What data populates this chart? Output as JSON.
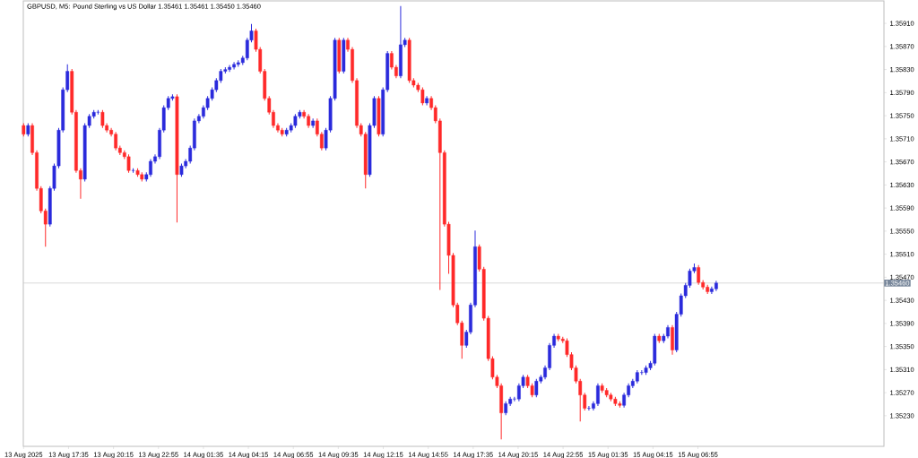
{
  "chart_data": {
    "type": "candlestick",
    "title": "GBPUSD, M5:  Pound Sterling vs US Dollar  1.35461 1.35461 1.35450 1.35460",
    "colors": [
      "#ff2a2a",
      "#2b2bdc",
      "#ff2a2a",
      "#ff2a2a",
      "#ff2a2a",
      "#ff2a2a",
      "#2b2bdc",
      "#2b2bdc",
      "#2b2bdc",
      "#2b2bdc",
      "#2b2bdc",
      "#ff2a2a",
      "#ff2a2a",
      "#ff2a2a",
      "#2b2bdc",
      "#2b2bdc",
      "#2b2bdc",
      "#2b2bdc",
      "#ff2a2a",
      "#ff2a2a",
      "#ff2a2a",
      "#ff2a2a",
      "#ff2a2a",
      "#ff2a2a",
      "#ff2a2a",
      "#2b2bdc",
      "#ff2a2a",
      "#ff2a2a",
      "#2b2bdc",
      "#2b2bdc",
      "#2b2bdc",
      "#2b2bdc",
      "#2b2bdc",
      "#2b2bdc",
      "#2b2bdc",
      "#ff2a2a",
      "#2b2bdc",
      "#2b2bdc",
      "#2b2bdc",
      "#2b2bdc",
      "#2b2bdc",
      "#2b2bdc",
      "#2b2bdc",
      "#2b2bdc",
      "#2b2bdc",
      "#2b2bdc",
      "#2b2bdc",
      "#2b2bdc",
      "#2b2bdc",
      "#2b2bdc",
      "#2b2bdc",
      "#2b2bdc",
      "#2b2bdc",
      "#ff2a2a",
      "#ff2a2a",
      "#ff2a2a",
      "#ff2a2a",
      "#ff2a2a",
      "#ff2a2a",
      "#ff2a2a",
      "#2b2bdc",
      "#2b2bdc",
      "#2b2bdc",
      "#2b2bdc",
      "#ff2a2a",
      "#ff2a2a",
      "#2b2bdc",
      "#ff2a2a",
      "#ff2a2a",
      "#2b2bdc",
      "#2b2bdc",
      "#2b2bdc",
      "#ff2a2a",
      "#2b2bdc",
      "#ff2a2a",
      "#ff2a2a",
      "#ff2a2a",
      "#ff2a2a",
      "#ff2a2a",
      "#2b2bdc",
      "#2b2bdc",
      "#ff2a2a",
      "#2b2bdc",
      "#2b2bdc",
      "#ff2a2a",
      "#ff2a2a",
      "#2b2bdc",
      "#2b2bdc",
      "#ff2a2a",
      "#ff2a2a",
      "#ff2a2a",
      "#ff2a2a",
      "#2b2bdc",
      "#ff2a2a",
      "#ff2a2a",
      "#ff2a2a",
      "#ff2a2a",
      "#ff2a2a",
      "#ff2a2a",
      "#ff2a2a",
      "#ff2a2a",
      "#2b2bdc",
      "#2b2bdc",
      "#2b2bdc",
      "#ff2a2a",
      "#ff2a2a",
      "#ff2a2a",
      "#ff2a2a",
      "#ff2a2a",
      "#ff2a2a",
      "#2b2bdc",
      "#2b2bdc",
      "#2b2bdc",
      "#2b2bdc",
      "#2b2bdc",
      "#ff2a2a",
      "#ff2a2a",
      "#2b2bdc",
      "#2b2bdc",
      "#2b2bdc",
      "#2b2bdc",
      "#2b2bdc",
      "#ff2a2a",
      "#ff2a2a",
      "#ff2a2a",
      "#ff2a2a",
      "#ff2a2a",
      "#ff2a2a",
      "#ff2a2a",
      "#2b2bdc",
      "#2b2bdc",
      "#2b2bdc",
      "#ff2a2a",
      "#ff2a2a",
      "#ff2a2a",
      "#ff2a2a",
      "#ff2a2a",
      "#2b2bdc",
      "#2b2bdc",
      "#2b2bdc",
      "#2b2bdc",
      "#2b2bdc",
      "#2b2bdc",
      "#2b2bdc",
      "#2b2bdc",
      "#ff2a2a",
      "#2b2bdc",
      "#2b2bdc",
      "#ff2a2a",
      "#2b2bdc",
      "#2b2bdc",
      "#2b2bdc",
      "#2b2bdc",
      "#2b2bdc",
      "#ff2a2a",
      "#ff2a2a",
      "#ff2a2a",
      "#2b2bdc",
      "#2b2bdc"
    ],
    "xlim": [
      "2025-08-13T14:54",
      "2025-08-15T17:57"
    ],
    "ylim": [
      1.35177,
      1.35949
    ],
    "xticks": [
      {
        "value": "2025-08-13T14:55",
        "label": "13 Aug 2025"
      },
      {
        "value": "2025-08-13T17:35",
        "label": "13 Aug 17:35"
      },
      {
        "value": "2025-08-13T20:15",
        "label": "13 Aug 20:15"
      },
      {
        "value": "2025-08-13T22:55",
        "label": "13 Aug 22:55"
      },
      {
        "value": "2025-08-14T01:35",
        "label": "14 Aug 01:35"
      },
      {
        "value": "2025-08-14T04:15",
        "label": "14 Aug 04:15"
      },
      {
        "value": "2025-08-14T06:55",
        "label": "14 Aug 06:55"
      },
      {
        "value": "2025-08-14T09:35",
        "label": "14 Aug 09:35"
      },
      {
        "value": "2025-08-14T12:15",
        "label": "14 Aug 12:15"
      },
      {
        "value": "2025-08-14T14:55",
        "label": "14 Aug 14:55"
      },
      {
        "value": "2025-08-14T17:35",
        "label": "14 Aug 17:35"
      },
      {
        "value": "2025-08-14T20:15",
        "label": "14 Aug 20:15"
      },
      {
        "value": "2025-08-14T22:55",
        "label": "14 Aug 22:55"
      },
      {
        "value": "2025-08-15T01:35",
        "label": "15 Aug 01:35"
      },
      {
        "value": "2025-08-15T04:15",
        "label": "15 Aug 04:15"
      },
      {
        "value": "2025-08-15T06:55",
        "label": "15 Aug 06:55"
      }
    ],
    "yticks": [
      {
        "value": 1.3523,
        "label": "1.35230"
      },
      {
        "value": 1.3527,
        "label": "1.35270"
      },
      {
        "value": 1.3531,
        "label": "1.35310"
      },
      {
        "value": 1.3535,
        "label": "1.35350"
      },
      {
        "value": 1.3539,
        "label": "1.35390"
      },
      {
        "value": 1.3543,
        "label": "1.35430"
      },
      {
        "value": 1.3547,
        "label": "1.35470"
      },
      {
        "value": 1.3551,
        "label": "1.35510"
      },
      {
        "value": 1.3555,
        "label": "1.35550"
      },
      {
        "value": 1.3559,
        "label": "1.35590"
      },
      {
        "value": 1.3563,
        "label": "1.35630"
      },
      {
        "value": 1.3567,
        "label": "1.35670"
      },
      {
        "value": 1.3571,
        "label": "1.35710"
      },
      {
        "value": 1.3575,
        "label": "1.35750"
      },
      {
        "value": 1.3579,
        "label": "1.35790"
      },
      {
        "value": 1.3583,
        "label": "1.35830"
      },
      {
        "value": 1.3587,
        "label": "1.35870"
      },
      {
        "value": 1.3591,
        "label": "1.35910"
      }
    ],
    "ref_lines": [
      {
        "axis": "y",
        "value": 1.3546,
        "label": "1.35460",
        "color": "#c8c8c8"
      }
    ],
    "x": [
      "2025-08-13T14:55",
      "2025-08-13T15:11",
      "2025-08-13T15:26",
      "2025-08-13T15:42",
      "2025-08-13T15:57",
      "2025-08-13T16:13",
      "2025-08-13T16:29",
      "2025-08-13T16:44",
      "2025-08-13T17:00",
      "2025-08-13T17:15",
      "2025-08-13T17:31",
      "2025-08-13T17:47",
      "2025-08-13T18:02",
      "2025-08-13T18:18",
      "2025-08-13T18:33",
      "2025-08-13T18:49",
      "2025-08-13T19:05",
      "2025-08-13T19:20",
      "2025-08-13T19:36",
      "2025-08-13T19:51",
      "2025-08-13T20:07",
      "2025-08-13T20:23",
      "2025-08-13T20:38",
      "2025-08-13T20:54",
      "2025-08-13T21:09",
      "2025-08-13T21:25",
      "2025-08-13T21:41",
      "2025-08-13T21:56",
      "2025-08-13T22:12",
      "2025-08-13T22:27",
      "2025-08-13T22:43",
      "2025-08-13T22:59",
      "2025-08-13T23:14",
      "2025-08-13T23:30",
      "2025-08-13T23:45",
      "2025-08-14T00:01",
      "2025-08-14T00:17",
      "2025-08-14T00:32",
      "2025-08-14T00:48",
      "2025-08-14T01:03",
      "2025-08-14T01:19",
      "2025-08-14T01:35",
      "2025-08-14T01:50",
      "2025-08-14T02:06",
      "2025-08-14T02:21",
      "2025-08-14T02:37",
      "2025-08-14T02:53",
      "2025-08-14T03:08",
      "2025-08-14T03:24",
      "2025-08-14T03:39",
      "2025-08-14T03:55",
      "2025-08-14T04:11",
      "2025-08-14T04:26",
      "2025-08-14T04:42",
      "2025-08-14T04:57",
      "2025-08-14T05:13",
      "2025-08-14T05:29",
      "2025-08-14T05:44",
      "2025-08-14T06:00",
      "2025-08-14T06:15",
      "2025-08-14T06:31",
      "2025-08-14T06:47",
      "2025-08-14T07:02",
      "2025-08-14T07:18",
      "2025-08-14T07:33",
      "2025-08-14T07:49",
      "2025-08-14T08:05",
      "2025-08-14T08:20",
      "2025-08-14T08:36",
      "2025-08-14T08:51",
      "2025-08-14T09:07",
      "2025-08-14T09:23",
      "2025-08-14T09:38",
      "2025-08-14T09:54",
      "2025-08-14T10:09",
      "2025-08-14T10:25",
      "2025-08-14T10:41",
      "2025-08-14T10:56",
      "2025-08-14T11:12",
      "2025-08-14T11:27",
      "2025-08-14T11:43",
      "2025-08-14T11:59",
      "2025-08-14T12:14",
      "2025-08-14T12:30",
      "2025-08-14T12:45",
      "2025-08-14T13:01",
      "2025-08-14T13:17",
      "2025-08-14T13:32",
      "2025-08-14T13:48",
      "2025-08-14T14:03",
      "2025-08-14T14:19",
      "2025-08-14T14:35",
      "2025-08-14T14:50",
      "2025-08-14T15:06",
      "2025-08-14T15:21",
      "2025-08-14T15:37",
      "2025-08-14T15:53",
      "2025-08-14T16:08",
      "2025-08-14T16:24",
      "2025-08-14T16:39",
      "2025-08-14T16:55",
      "2025-08-14T17:11",
      "2025-08-14T17:26",
      "2025-08-14T17:42",
      "2025-08-14T17:57",
      "2025-08-14T18:13",
      "2025-08-14T18:29",
      "2025-08-14T18:44",
      "2025-08-14T19:00",
      "2025-08-14T19:15",
      "2025-08-14T19:31",
      "2025-08-14T19:47",
      "2025-08-14T20:02",
      "2025-08-14T20:18",
      "2025-08-14T20:33",
      "2025-08-14T20:49",
      "2025-08-14T21:05",
      "2025-08-14T21:20",
      "2025-08-14T21:36",
      "2025-08-14T21:51",
      "2025-08-14T22:07",
      "2025-08-14T22:23",
      "2025-08-14T22:38",
      "2025-08-14T22:54",
      "2025-08-14T23:09",
      "2025-08-14T23:25",
      "2025-08-14T23:41",
      "2025-08-14T23:56",
      "2025-08-15T00:12",
      "2025-08-15T00:27",
      "2025-08-15T00:43",
      "2025-08-15T00:59",
      "2025-08-15T01:14",
      "2025-08-15T01:30",
      "2025-08-15T01:45",
      "2025-08-15T02:01",
      "2025-08-15T02:17",
      "2025-08-15T02:32",
      "2025-08-15T02:48",
      "2025-08-15T03:03",
      "2025-08-15T03:19",
      "2025-08-15T03:35",
      "2025-08-15T03:50",
      "2025-08-15T04:06",
      "2025-08-15T04:21",
      "2025-08-15T04:37",
      "2025-08-15T04:53",
      "2025-08-15T05:08",
      "2025-08-15T05:24",
      "2025-08-15T05:39",
      "2025-08-15T05:55",
      "2025-08-15T06:11",
      "2025-08-15T06:26",
      "2025-08-15T06:42",
      "2025-08-15T06:57",
      "2025-08-15T07:13",
      "2025-08-15T07:29",
      "2025-08-15T07:44",
      "2025-08-15T08:00"
    ],
    "ohlc": [
      [
        1.35733,
        1.35737,
        1.35714,
        1.35718
      ],
      [
        1.35718,
        1.35737,
        1.35714,
        1.35733
      ],
      [
        1.35733,
        1.35737,
        1.35682,
        1.35686
      ],
      [
        1.35686,
        1.3569,
        1.3562,
        1.35624
      ],
      [
        1.35624,
        1.35628,
        1.35581,
        1.35585
      ],
      [
        1.35585,
        1.35589,
        1.35523,
        1.35562
      ],
      [
        1.35562,
        1.35628,
        1.35558,
        1.35624
      ],
      [
        1.35624,
        1.35667,
        1.3562,
        1.35663
      ],
      [
        1.35663,
        1.35729,
        1.35659,
        1.35725
      ],
      [
        1.35725,
        1.35799,
        1.35721,
        1.35795
      ],
      [
        1.35795,
        1.35839,
        1.35791,
        1.35827
      ],
      [
        1.35827,
        1.35831,
        1.35752,
        1.35756
      ],
      [
        1.35756,
        1.3576,
        1.35651,
        1.35655
      ],
      [
        1.35655,
        1.35659,
        1.35606,
        1.3564
      ],
      [
        1.3564,
        1.35737,
        1.35636,
        1.35733
      ],
      [
        1.35733,
        1.35753,
        1.35729,
        1.35749
      ],
      [
        1.35749,
        1.3576,
        1.35745,
        1.35756
      ],
      [
        1.35756,
        1.3576,
        1.35752,
        1.35756
      ],
      [
        1.35756,
        1.3576,
        1.35729,
        1.35733
      ],
      [
        1.35733,
        1.35737,
        1.35721,
        1.35725
      ],
      [
        1.35725,
        1.35729,
        1.35714,
        1.35718
      ],
      [
        1.35718,
        1.35722,
        1.3569,
        1.35694
      ],
      [
        1.35694,
        1.35698,
        1.35682,
        1.35686
      ],
      [
        1.35686,
        1.3569,
        1.35675,
        1.35679
      ],
      [
        1.35679,
        1.35683,
        1.35651,
        1.35655
      ],
      [
        1.35655,
        1.35659,
        1.35651,
        1.35655
      ],
      [
        1.35655,
        1.35659,
        1.35644,
        1.35648
      ],
      [
        1.35648,
        1.35652,
        1.35636,
        1.3564
      ],
      [
        1.3564,
        1.35652,
        1.35636,
        1.35648
      ],
      [
        1.35648,
        1.35675,
        1.35644,
        1.35671
      ],
      [
        1.35671,
        1.35683,
        1.35667,
        1.35679
      ],
      [
        1.35679,
        1.35729,
        1.35675,
        1.35725
      ],
      [
        1.35725,
        1.35768,
        1.35721,
        1.35764
      ],
      [
        1.35764,
        1.35784,
        1.3576,
        1.3578
      ],
      [
        1.3578,
        1.35787,
        1.35776,
        1.35783
      ],
      [
        1.35783,
        1.35787,
        1.35565,
        1.35648
      ],
      [
        1.35648,
        1.35667,
        1.35644,
        1.35663
      ],
      [
        1.35663,
        1.35675,
        1.35659,
        1.35671
      ],
      [
        1.35671,
        1.35698,
        1.35667,
        1.35694
      ],
      [
        1.35694,
        1.35745,
        1.3569,
        1.35741
      ],
      [
        1.35741,
        1.35753,
        1.35737,
        1.35749
      ],
      [
        1.35749,
        1.35768,
        1.35745,
        1.35764
      ],
      [
        1.35764,
        1.35784,
        1.3576,
        1.3578
      ],
      [
        1.3578,
        1.35799,
        1.35776,
        1.35795
      ],
      [
        1.35795,
        1.35815,
        1.35791,
        1.35811
      ],
      [
        1.35811,
        1.35831,
        1.35807,
        1.35827
      ],
      [
        1.35827,
        1.35834,
        1.35823,
        1.3583
      ],
      [
        1.3583,
        1.35838,
        1.35826,
        1.35834
      ],
      [
        1.35834,
        1.35843,
        1.3583,
        1.35839
      ],
      [
        1.35839,
        1.35846,
        1.35835,
        1.35842
      ],
      [
        1.35842,
        1.35854,
        1.35838,
        1.3585
      ],
      [
        1.3585,
        1.35885,
        1.35846,
        1.35881
      ],
      [
        1.35881,
        1.35909,
        1.35877,
        1.35897
      ],
      [
        1.35897,
        1.35901,
        1.35861,
        1.35865
      ],
      [
        1.35865,
        1.35869,
        1.35823,
        1.35827
      ],
      [
        1.35827,
        1.35831,
        1.35776,
        1.3578
      ],
      [
        1.3578,
        1.35784,
        1.35752,
        1.35756
      ],
      [
        1.35756,
        1.3576,
        1.35729,
        1.35733
      ],
      [
        1.35733,
        1.35737,
        1.35721,
        1.35725
      ],
      [
        1.35725,
        1.35729,
        1.35714,
        1.35718
      ],
      [
        1.35718,
        1.35729,
        1.35714,
        1.35725
      ],
      [
        1.35725,
        1.35737,
        1.35721,
        1.35733
      ],
      [
        1.35733,
        1.35753,
        1.35729,
        1.35749
      ],
      [
        1.35749,
        1.3576,
        1.35745,
        1.35756
      ],
      [
        1.35756,
        1.3576,
        1.35745,
        1.35749
      ],
      [
        1.35749,
        1.35753,
        1.35729,
        1.35733
      ],
      [
        1.35733,
        1.35745,
        1.35729,
        1.35741
      ],
      [
        1.35741,
        1.35745,
        1.35714,
        1.35718
      ],
      [
        1.35718,
        1.35722,
        1.3569,
        1.35694
      ],
      [
        1.35694,
        1.35729,
        1.3569,
        1.35725
      ],
      [
        1.35725,
        1.35784,
        1.35721,
        1.3578
      ],
      [
        1.3578,
        1.35885,
        1.35776,
        1.35881
      ],
      [
        1.35881,
        1.35885,
        1.35823,
        1.35827
      ],
      [
        1.35827,
        1.35885,
        1.35823,
        1.35881
      ],
      [
        1.35881,
        1.35885,
        1.35861,
        1.35865
      ],
      [
        1.35865,
        1.35869,
        1.35807,
        1.35811
      ],
      [
        1.35811,
        1.35815,
        1.35729,
        1.35733
      ],
      [
        1.35733,
        1.35737,
        1.35714,
        1.35718
      ],
      [
        1.35718,
        1.35722,
        1.35624,
        1.35648
      ],
      [
        1.35648,
        1.35737,
        1.35644,
        1.35733
      ],
      [
        1.35733,
        1.35784,
        1.35729,
        1.3578
      ],
      [
        1.3578,
        1.35784,
        1.35714,
        1.35718
      ],
      [
        1.35718,
        1.35799,
        1.35714,
        1.35795
      ],
      [
        1.35795,
        1.35862,
        1.35791,
        1.35858
      ],
      [
        1.35858,
        1.35862,
        1.3583,
        1.35834
      ],
      [
        1.35834,
        1.35838,
        1.35815,
        1.35819
      ],
      [
        1.35819,
        1.3594,
        1.35815,
        1.35873
      ],
      [
        1.35873,
        1.35885,
        1.35869,
        1.35881
      ],
      [
        1.35881,
        1.35885,
        1.35807,
        1.35811
      ],
      [
        1.35811,
        1.35815,
        1.35799,
        1.35803
      ],
      [
        1.35803,
        1.35807,
        1.35791,
        1.35795
      ],
      [
        1.35795,
        1.35799,
        1.35768,
        1.35772
      ],
      [
        1.35772,
        1.35784,
        1.35768,
        1.3578
      ],
      [
        1.3578,
        1.35784,
        1.3576,
        1.35764
      ],
      [
        1.35764,
        1.35768,
        1.35737,
        1.35741
      ],
      [
        1.35741,
        1.35745,
        1.35448,
        1.35686
      ],
      [
        1.35686,
        1.3569,
        1.35558,
        1.35562
      ],
      [
        1.35562,
        1.35566,
        1.35476,
        1.35508
      ],
      [
        1.35508,
        1.35512,
        1.35418,
        1.35422
      ],
      [
        1.35422,
        1.35426,
        1.35387,
        1.35391
      ],
      [
        1.35391,
        1.35395,
        1.35329,
        1.35352
      ],
      [
        1.35352,
        1.35379,
        1.35348,
        1.35375
      ],
      [
        1.35375,
        1.35426,
        1.35371,
        1.35422
      ],
      [
        1.35422,
        1.35551,
        1.35418,
        1.35523
      ],
      [
        1.35523,
        1.35527,
        1.3548,
        1.35484
      ],
      [
        1.35484,
        1.35488,
        1.35395,
        1.35399
      ],
      [
        1.35399,
        1.35403,
        1.35325,
        1.35329
      ],
      [
        1.35329,
        1.35333,
        1.35293,
        1.35297
      ],
      [
        1.35297,
        1.35301,
        1.35278,
        1.35282
      ],
      [
        1.35282,
        1.35286,
        1.35189,
        1.35235
      ],
      [
        1.35235,
        1.35255,
        1.35231,
        1.35251
      ],
      [
        1.35251,
        1.35263,
        1.35247,
        1.35259
      ],
      [
        1.35259,
        1.35263,
        1.35255,
        1.35259
      ],
      [
        1.35259,
        1.35286,
        1.35255,
        1.35282
      ],
      [
        1.35282,
        1.35301,
        1.35278,
        1.35297
      ],
      [
        1.35297,
        1.35301,
        1.35278,
        1.35282
      ],
      [
        1.35282,
        1.35286,
        1.35262,
        1.35266
      ],
      [
        1.35266,
        1.35294,
        1.35262,
        1.3529
      ],
      [
        1.3529,
        1.35301,
        1.35286,
        1.35297
      ],
      [
        1.35297,
        1.35317,
        1.35293,
        1.35313
      ],
      [
        1.35313,
        1.35356,
        1.35309,
        1.35352
      ],
      [
        1.35352,
        1.35372,
        1.35348,
        1.35368
      ],
      [
        1.35368,
        1.35372,
        1.35359,
        1.35363
      ],
      [
        1.35363,
        1.35367,
        1.35356,
        1.3536
      ],
      [
        1.3536,
        1.35364,
        1.35332,
        1.35336
      ],
      [
        1.35336,
        1.3534,
        1.35309,
        1.35313
      ],
      [
        1.35313,
        1.35317,
        1.35286,
        1.3529
      ],
      [
        1.3529,
        1.35294,
        1.3522,
        1.35266
      ],
      [
        1.35266,
        1.3527,
        1.35239,
        1.35243
      ],
      [
        1.35243,
        1.35247,
        1.35239,
        1.35243
      ],
      [
        1.35243,
        1.35255,
        1.35239,
        1.35251
      ],
      [
        1.35251,
        1.35286,
        1.35247,
        1.35282
      ],
      [
        1.35282,
        1.35286,
        1.3527,
        1.35274
      ],
      [
        1.35274,
        1.35278,
        1.35262,
        1.35266
      ],
      [
        1.35266,
        1.3527,
        1.35255,
        1.35259
      ],
      [
        1.35259,
        1.35263,
        1.35247,
        1.35251
      ],
      [
        1.35251,
        1.35255,
        1.35244,
        1.35248
      ],
      [
        1.35248,
        1.3527,
        1.35244,
        1.35266
      ],
      [
        1.35266,
        1.35286,
        1.35262,
        1.35282
      ],
      [
        1.35282,
        1.35294,
        1.35278,
        1.3529
      ],
      [
        1.3529,
        1.35309,
        1.35286,
        1.35305
      ],
      [
        1.35305,
        1.35309,
        1.35301,
        1.35305
      ],
      [
        1.35305,
        1.35317,
        1.35301,
        1.35313
      ],
      [
        1.35313,
        1.35325,
        1.35309,
        1.35321
      ],
      [
        1.35321,
        1.35372,
        1.35317,
        1.35368
      ],
      [
        1.35368,
        1.35372,
        1.35356,
        1.3536
      ],
      [
        1.3536,
        1.35372,
        1.35356,
        1.35368
      ],
      [
        1.35368,
        1.35387,
        1.35364,
        1.35383
      ],
      [
        1.35383,
        1.35387,
        1.35336,
        1.35344
      ],
      [
        1.35344,
        1.3541,
        1.3534,
        1.35406
      ],
      [
        1.35406,
        1.35442,
        1.35402,
        1.35438
      ],
      [
        1.35438,
        1.3546,
        1.35434,
        1.35456
      ],
      [
        1.35456,
        1.35485,
        1.35452,
        1.35481
      ],
      [
        1.35481,
        1.35494,
        1.35477,
        1.35487
      ],
      [
        1.35487,
        1.35491,
        1.35457,
        1.35461
      ],
      [
        1.35461,
        1.35465,
        1.35449,
        1.35453
      ],
      [
        1.35453,
        1.35457,
        1.35441,
        1.35445
      ],
      [
        1.35445,
        1.35454,
        1.35441,
        1.3545
      ],
      [
        1.3545,
        1.35464,
        1.35446,
        1.3546
      ]
    ]
  }
}
